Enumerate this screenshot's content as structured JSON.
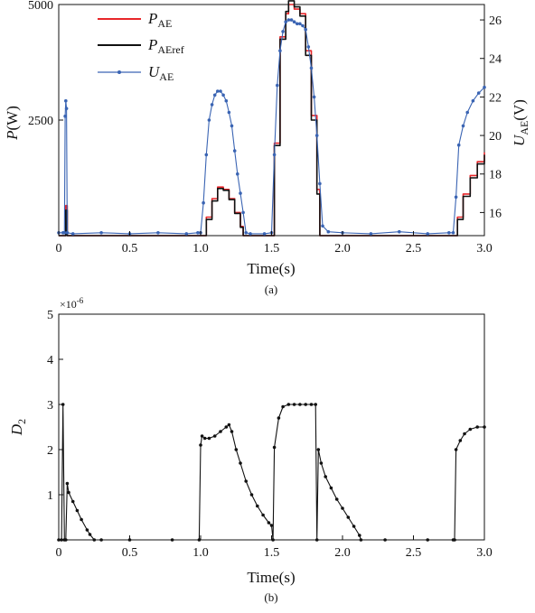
{
  "chart_data": [
    {
      "type": "line",
      "caption": "(a)",
      "xlabel": "Time(s)",
      "ylabel": {
        "main": "P",
        "unit": "(W)"
      },
      "y2label": {
        "main": "U",
        "sub": "AE",
        "unit": "(V)"
      },
      "xlim": [
        0,
        3.0
      ],
      "ylim": [
        0,
        5000
      ],
      "y2lim": [
        14.8,
        26.8
      ],
      "xticks": [
        "0",
        "0.5",
        "1.0",
        "1.5",
        "2.0",
        "2.5",
        "3.0"
      ],
      "yticks": [
        "2500",
        "5000"
      ],
      "y2ticks": [
        "16",
        "18",
        "20",
        "22",
        "24",
        "26"
      ],
      "grid": false,
      "legend_position": "top-left",
      "series": [
        {
          "name": "P",
          "name_sub": "AE",
          "color": "#e8262a",
          "axis": "left",
          "style": "step",
          "x": [
            0,
            0.04,
            0.05,
            0.06,
            0.07,
            1.0,
            1.04,
            1.08,
            1.12,
            1.16,
            1.2,
            1.24,
            1.28,
            1.3,
            1.31,
            1.5,
            1.52,
            1.56,
            1.6,
            1.62,
            1.66,
            1.7,
            1.74,
            1.78,
            1.82,
            1.84,
            1.85,
            2.78,
            2.81,
            2.85,
            2.9,
            2.95,
            3.0
          ],
          "y": [
            0,
            0,
            650,
            0,
            0,
            0,
            400,
            800,
            1050,
            1000,
            800,
            500,
            200,
            0,
            0,
            0,
            2000,
            4300,
            4800,
            5000,
            4900,
            4800,
            4000,
            2600,
            1000,
            0,
            0,
            0,
            400,
            900,
            1300,
            1600,
            1800
          ]
        },
        {
          "name": "P",
          "name_sub": "AEref",
          "color": "#111111",
          "axis": "left",
          "style": "step",
          "x": [
            0,
            0.04,
            0.05,
            0.06,
            0.07,
            1.0,
            1.04,
            1.08,
            1.12,
            1.16,
            1.2,
            1.24,
            1.28,
            1.3,
            1.31,
            1.5,
            1.52,
            1.56,
            1.6,
            1.62,
            1.66,
            1.7,
            1.74,
            1.78,
            1.82,
            1.84,
            1.85,
            2.78,
            2.81,
            2.85,
            2.9,
            2.95,
            3.0
          ],
          "y": [
            0,
            0,
            550,
            0,
            0,
            0,
            350,
            750,
            1020,
            980,
            780,
            480,
            180,
            0,
            0,
            0,
            1950,
            4250,
            4850,
            5080,
            4950,
            4750,
            3900,
            2500,
            900,
            0,
            0,
            0,
            350,
            850,
            1250,
            1550,
            1750
          ]
        },
        {
          "name": "U",
          "name_sub": "AE",
          "color": "#3a64b3",
          "axis": "right",
          "style": "marker-line",
          "x": [
            0,
            0.03,
            0.04,
            0.045,
            0.05,
            0.055,
            0.06,
            0.1,
            0.3,
            0.5,
            0.7,
            0.9,
            0.98,
            1.0,
            1.02,
            1.04,
            1.06,
            1.08,
            1.1,
            1.12,
            1.14,
            1.16,
            1.18,
            1.2,
            1.22,
            1.24,
            1.26,
            1.28,
            1.3,
            1.32,
            1.35,
            1.45,
            1.5,
            1.52,
            1.54,
            1.56,
            1.58,
            1.6,
            1.62,
            1.64,
            1.66,
            1.68,
            1.7,
            1.72,
            1.74,
            1.76,
            1.78,
            1.8,
            1.82,
            1.84,
            1.86,
            1.9,
            2.0,
            2.2,
            2.4,
            2.6,
            2.75,
            2.78,
            2.8,
            2.82,
            2.85,
            2.88,
            2.92,
            2.96,
            3.0
          ],
          "y": [
            14.95,
            14.95,
            14.95,
            21.0,
            21.8,
            21.4,
            14.95,
            14.9,
            14.95,
            14.9,
            14.95,
            14.9,
            14.95,
            14.95,
            16.5,
            19.0,
            20.8,
            21.6,
            22.1,
            22.3,
            22.3,
            22.1,
            21.8,
            21.2,
            20.5,
            19.2,
            18.0,
            17.0,
            16.0,
            14.95,
            14.9,
            14.9,
            14.95,
            19.0,
            22.6,
            24.4,
            25.4,
            25.9,
            26.0,
            26.0,
            25.9,
            25.8,
            25.8,
            25.7,
            25.5,
            24.6,
            23.5,
            22.0,
            20.0,
            17.5,
            15.3,
            15.0,
            14.95,
            14.9,
            15.0,
            14.9,
            14.95,
            14.95,
            16.8,
            19.5,
            20.5,
            21.2,
            21.8,
            22.2,
            22.5
          ]
        }
      ]
    },
    {
      "type": "line",
      "caption": "(b)",
      "xlabel": "Time(s)",
      "ylabel": {
        "main": "D",
        "sub": "2"
      },
      "exponent_label": {
        "base": "×10",
        "power": "-6"
      },
      "xlim": [
        0,
        3.0
      ],
      "ylim": [
        0,
        5
      ],
      "xticks": [
        "0",
        "0.5",
        "1.0",
        "1.5",
        "2.0",
        "2.5",
        "3.0"
      ],
      "yticks": [
        "1",
        "2",
        "3",
        "4",
        "5"
      ],
      "grid": false,
      "series": [
        {
          "color": "#111111",
          "style": "marker-line",
          "x": [
            0,
            0.02,
            0.03,
            0.04,
            0.05,
            0.06,
            0.07,
            0.1,
            0.13,
            0.16,
            0.2,
            0.22,
            0.25,
            0.3,
            0.5,
            0.8,
            0.99,
            1.0,
            1.01,
            1.03,
            1.06,
            1.1,
            1.14,
            1.18,
            1.2,
            1.22,
            1.25,
            1.28,
            1.32,
            1.36,
            1.4,
            1.44,
            1.48,
            1.5,
            1.51,
            1.52,
            1.55,
            1.58,
            1.62,
            1.66,
            1.7,
            1.74,
            1.78,
            1.81,
            1.82,
            1.83,
            1.85,
            1.88,
            1.92,
            1.96,
            2.0,
            2.04,
            2.08,
            2.12,
            2.13,
            2.3,
            2.6,
            2.78,
            2.79,
            2.8,
            2.83,
            2.86,
            2.9,
            2.95,
            3.0
          ],
          "y": [
            0,
            0,
            3.0,
            0,
            0,
            1.25,
            1.05,
            0.85,
            0.65,
            0.45,
            0.22,
            0.12,
            0.0,
            0,
            0,
            0,
            0,
            2.1,
            2.3,
            2.25,
            2.25,
            2.3,
            2.4,
            2.5,
            2.55,
            2.4,
            2.0,
            1.7,
            1.3,
            1.0,
            0.75,
            0.55,
            0.38,
            0.32,
            0,
            2.05,
            2.7,
            2.95,
            3.0,
            3.0,
            3.0,
            3.0,
            3.0,
            3.0,
            0,
            2.0,
            1.7,
            1.4,
            1.15,
            0.9,
            0.7,
            0.5,
            0.3,
            0.1,
            0,
            0,
            0,
            0,
            0,
            2.0,
            2.2,
            2.35,
            2.45,
            2.5,
            2.5
          ]
        }
      ]
    }
  ],
  "legend": {
    "items": [
      {
        "main": "P",
        "sub": "AE",
        "color": "#e8262a"
      },
      {
        "main": "P",
        "sub": "AEref",
        "color": "#111111"
      },
      {
        "main": "U",
        "sub": "AE",
        "color": "#3a64b3"
      }
    ]
  }
}
